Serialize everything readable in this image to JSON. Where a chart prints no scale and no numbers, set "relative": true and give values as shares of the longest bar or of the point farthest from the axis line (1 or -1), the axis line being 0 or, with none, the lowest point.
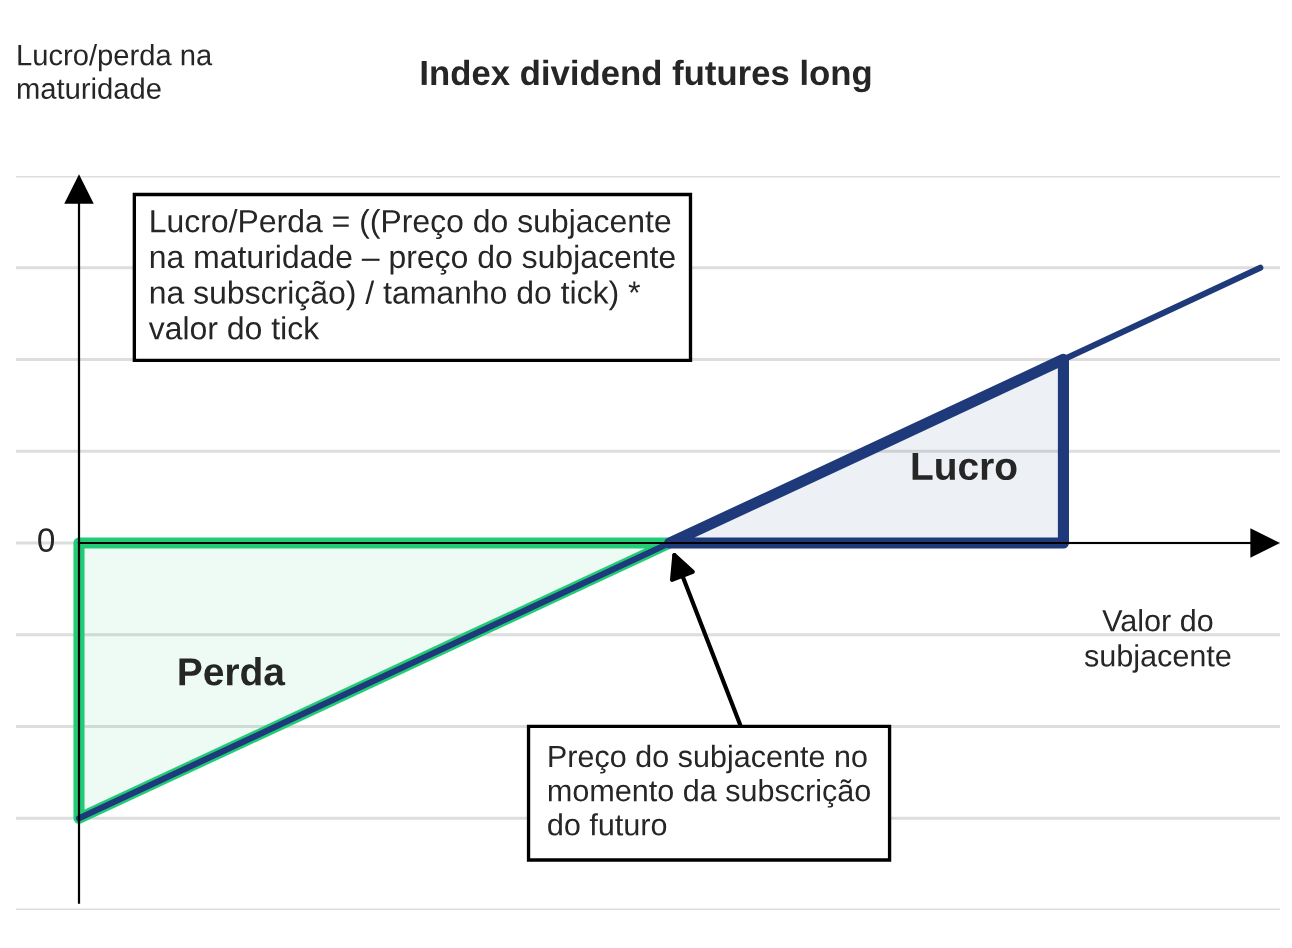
{
  "chart_data": {
    "type": "line",
    "title": "Index dividend futures long",
    "xlabel": "Valor do\nsubjacente",
    "categories": [
      null,
      null,
      null,
      null,
      null,
      null,
      null
    ],
    "relative": true,
    "grid": "y",
    "legend": false,
    "marker": "none",
    "line_style": "solid",
    "series": [
      {
        "color": "#1f3a7a",
        "values": [
          -1,
          -0.667,
          -0.333,
          0,
          0.333,
          0.667,
          1
        ]
      },
      {
        "type": "area",
        "color": "#22cc77",
        "values": [
          -1,
          -0.667,
          -0.333,
          0,
          null,
          null,
          null
        ]
      },
      {
        "type": "area",
        "color": "#1f3a7a",
        "values": [
          null,
          null,
          null,
          0,
          0.333,
          0.667,
          null
        ]
      }
    ],
    "annotations": [
      "Lucro/perda na\nmaturidade",
      "0",
      "Lucro/Perda = ((Preço do subjacente\nna maturidade – preço do subjacente\nna subscrição) / tamanho do tick) *\nvalor do tick",
      "Perda",
      "Lucro",
      "Preço do subjacente no\nmomento da subscrição\ndo futuro"
    ]
  }
}
